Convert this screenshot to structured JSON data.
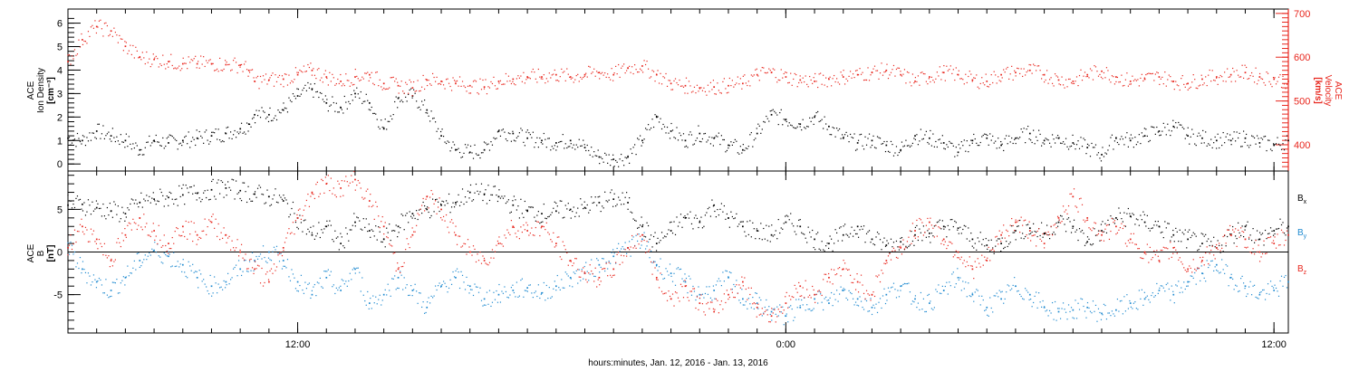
{
  "colors": {
    "black": "#000000",
    "red": "#e8261d",
    "blue": "#1f8ad0"
  },
  "chart_data": [
    {
      "type": "scatter",
      "panel": "plasma",
      "y_title": [
        "ACE",
        "Ion Density",
        "[cm⁻³]"
      ],
      "y2_title": [
        "ACE",
        "Velocity",
        "[km/s]"
      ],
      "ylim": [
        -0.3,
        6.6
      ],
      "y_ticks": [
        0,
        1,
        2,
        3,
        4,
        5,
        6
      ],
      "y2lim": [
        340,
        710
      ],
      "y2_ticks": [
        400,
        500,
        600,
        700
      ],
      "series": [
        {
          "name": "",
          "axis": "left",
          "color": "#000000",
          "x": [
            0.0,
            0.5,
            1.0,
            1.5,
            2.0,
            2.5,
            3.0,
            3.5,
            4.0,
            4.5,
            5.0,
            5.5,
            6.0,
            6.3,
            6.5,
            7.0,
            7.5,
            8.0,
            8.5,
            9.0,
            9.5,
            10.0,
            10.5,
            11.0,
            11.5,
            12.0,
            12.5,
            13.0,
            13.5,
            14.0,
            14.5,
            15.0,
            15.5,
            16.0,
            16.5,
            17.0,
            17.5,
            18.0,
            18.5,
            19.0,
            19.5,
            20.0,
            20.5,
            21.0,
            21.5,
            22.0,
            22.5,
            23.0,
            23.5,
            24.0,
            24.5,
            25.0,
            25.5,
            26.0,
            26.5,
            27.0,
            27.5,
            28.0,
            28.5,
            29.0,
            29.5,
            30.0,
            30.5,
            31.0,
            31.5,
            32.0,
            32.5,
            33.0,
            33.5,
            34.0,
            34.5,
            35.0,
            35.5,
            36.0,
            36.5,
            37.0,
            37.5,
            38.0,
            38.5,
            39.0,
            39.5,
            40.0,
            40.5,
            41.0,
            41.5,
            42.0,
            42.5
          ],
          "y": [
            1.1,
            1.0,
            1.4,
            1.2,
            1.0,
            0.6,
            1.0,
            0.9,
            1.0,
            1.1,
            1.2,
            1.3,
            1.5,
            1.7,
            2.1,
            2.1,
            2.3,
            2.9,
            3.2,
            2.6,
            2.4,
            3.0,
            2.6,
            1.5,
            2.8,
            2.9,
            2.3,
            1.2,
            0.6,
            0.5,
            0.6,
            1.4,
            1.3,
            1.1,
            1.0,
            0.9,
            1.0,
            0.7,
            0.3,
            0.2,
            0.3,
            1.0,
            2.0,
            1.4,
            1.0,
            1.3,
            1.1,
            0.8,
            0.6,
            1.3,
            2.1,
            1.9,
            1.7,
            2.0,
            1.6,
            1.1,
            0.9,
            1.0,
            0.8,
            0.6,
            1.2,
            1.1,
            0.9,
            0.5,
            1.0,
            1.1,
            0.8,
            1.1,
            1.3,
            1.0,
            1.1,
            0.9,
            0.7,
            0.4,
            1.1,
            1.0,
            1.2,
            1.4,
            1.6,
            1.2,
            1.1,
            1.0,
            1.0,
            1.1,
            0.9,
            0.8,
            1.0
          ]
        },
        {
          "name": "",
          "axis": "right",
          "color": "#e8261d",
          "x": [
            0.0,
            0.5,
            1.0,
            1.5,
            2.0,
            2.5,
            3.0,
            3.5,
            4.0,
            4.5,
            5.0,
            5.5,
            6.0,
            6.3,
            6.5,
            7.0,
            7.5,
            8.0,
            8.5,
            9.0,
            9.5,
            10.0,
            10.5,
            11.0,
            11.5,
            12.0,
            12.5,
            13.0,
            13.5,
            14.0,
            14.5,
            15.0,
            15.5,
            16.0,
            16.5,
            17.0,
            17.5,
            18.0,
            18.5,
            19.0,
            19.5,
            20.0,
            20.5,
            21.0,
            21.5,
            22.0,
            22.5,
            23.0,
            23.5,
            24.0,
            24.5,
            25.0,
            25.5,
            26.0,
            26.5,
            27.0,
            27.5,
            28.0,
            28.5,
            29.0,
            29.5,
            30.0,
            30.5,
            31.0,
            31.5,
            32.0,
            32.5,
            33.0,
            33.5,
            34.0,
            34.5,
            35.0,
            35.5,
            36.0,
            36.5,
            37.0,
            37.5,
            38.0,
            38.5,
            39.0,
            39.5,
            40.0,
            40.5,
            41.0,
            41.5,
            42.0,
            42.5
          ],
          "y": [
            590,
            640,
            670,
            660,
            625,
            600,
            595,
            590,
            585,
            585,
            585,
            583,
            582,
            570,
            545,
            548,
            550,
            560,
            570,
            555,
            545,
            555,
            560,
            540,
            535,
            530,
            548,
            545,
            540,
            535,
            532,
            545,
            550,
            555,
            555,
            560,
            555,
            560,
            565,
            560,
            575,
            580,
            560,
            540,
            535,
            530,
            532,
            535,
            540,
            560,
            565,
            555,
            548,
            545,
            550,
            555,
            560,
            565,
            570,
            560,
            545,
            555,
            565,
            560,
            548,
            545,
            560,
            565,
            570,
            560,
            548,
            545,
            560,
            568,
            555,
            545,
            550,
            555,
            545,
            540,
            550,
            555,
            560,
            565,
            555,
            550,
            545
          ]
        }
      ]
    },
    {
      "type": "scatter",
      "panel": "magnetic-field",
      "y_title": [
        "ACE",
        "B",
        "[nT]"
      ],
      "ylim": [
        -9.5,
        9.5
      ],
      "y_ticks": [
        -5,
        0,
        5
      ],
      "x_range": [
        0,
        42.5
      ],
      "x_ticks": [
        {
          "value": 8,
          "label": "12:00"
        },
        {
          "value": 25,
          "label": "0:00"
        },
        {
          "value": 42,
          "label": "12:00"
        }
      ],
      "x_minor_step": 1,
      "xlabel": "hours:minutes, Jan. 12, 2016 - Jan. 13, 2016",
      "legend": {
        "placement": "right",
        "entries": [
          {
            "label": "B",
            "sub": "x",
            "color": "#000000"
          },
          {
            "label": "B",
            "sub": "y",
            "color": "#1f8ad0"
          },
          {
            "label": "B",
            "sub": "z",
            "color": "#e8261d"
          }
        ]
      },
      "series": [
        {
          "name": "Bx",
          "color": "#000000",
          "x": [
            0.0,
            0.5,
            1.0,
            1.5,
            2.0,
            2.5,
            3.0,
            3.5,
            4.0,
            4.5,
            5.0,
            5.5,
            6.0,
            6.5,
            7.0,
            7.5,
            8.0,
            8.5,
            9.0,
            9.5,
            10.0,
            10.5,
            11.0,
            11.5,
            12.0,
            12.5,
            13.0,
            13.5,
            14.0,
            14.5,
            15.0,
            15.5,
            16.0,
            16.5,
            17.0,
            17.5,
            18.0,
            18.5,
            19.0,
            19.5,
            20.0,
            20.5,
            21.0,
            21.5,
            22.0,
            22.5,
            23.0,
            23.5,
            24.0,
            24.5,
            25.0,
            25.5,
            26.0,
            26.5,
            27.0,
            27.5,
            28.0,
            28.5,
            29.0,
            29.5,
            30.0,
            30.5,
            31.0,
            31.5,
            32.0,
            32.5,
            33.0,
            33.5,
            34.0,
            34.5,
            35.0,
            35.5,
            36.0,
            36.5,
            37.0,
            37.5,
            38.0,
            38.5,
            39.0,
            39.5,
            40.0,
            40.5,
            41.0,
            41.5,
            42.0,
            42.5
          ],
          "y": [
            5.5,
            5.6,
            5.2,
            4.8,
            4.5,
            5.8,
            6.2,
            6.4,
            6.7,
            6.9,
            7.3,
            7.5,
            7.2,
            6.8,
            6.5,
            6.0,
            4.0,
            2.0,
            3.0,
            1.0,
            3.5,
            2.5,
            1.5,
            3.0,
            4.5,
            5.0,
            5.5,
            5.8,
            7.0,
            6.8,
            6.5,
            5.5,
            4.8,
            4.5,
            4.8,
            5.0,
            5.2,
            5.8,
            6.2,
            5.8,
            3.0,
            1.0,
            2.5,
            4.0,
            3.5,
            5.5,
            4.0,
            3.0,
            2.5,
            2.0,
            3.5,
            3.0,
            1.5,
            1.0,
            2.0,
            3.0,
            1.5,
            0.8,
            1.2,
            2.0,
            2.2,
            3.0,
            2.8,
            1.5,
            0.8,
            1.0,
            2.5,
            2.8,
            2.2,
            3.5,
            3.0,
            1.2,
            2.5,
            4.0,
            4.2,
            3.5,
            3.0,
            2.0,
            1.5,
            1.0,
            0.5,
            2.0,
            3.0,
            1.5,
            2.5,
            3.0
          ]
        },
        {
          "name": "By",
          "color": "#1f8ad0",
          "x": [
            0.0,
            0.5,
            1.0,
            1.5,
            2.0,
            2.5,
            3.0,
            3.5,
            4.0,
            4.5,
            5.0,
            5.5,
            6.0,
            6.5,
            7.0,
            7.5,
            8.0,
            8.5,
            9.0,
            9.5,
            10.0,
            10.5,
            11.0,
            11.5,
            12.0,
            12.5,
            13.0,
            13.5,
            14.0,
            14.5,
            15.0,
            15.5,
            16.0,
            16.5,
            17.0,
            17.5,
            18.0,
            18.5,
            19.0,
            19.5,
            20.0,
            20.5,
            21.0,
            21.5,
            22.0,
            22.5,
            23.0,
            23.5,
            24.0,
            24.5,
            25.0,
            25.5,
            26.0,
            26.5,
            27.0,
            27.5,
            28.0,
            28.5,
            29.0,
            29.5,
            30.0,
            30.5,
            31.0,
            31.5,
            32.0,
            32.5,
            33.0,
            33.5,
            34.0,
            34.5,
            35.0,
            35.5,
            36.0,
            36.5,
            37.0,
            37.5,
            38.0,
            38.5,
            39.0,
            39.5,
            40.0,
            40.5,
            41.0,
            41.5,
            42.0,
            42.5
          ],
          "y": [
            0.5,
            -2.0,
            -3.5,
            -4.5,
            -3.0,
            -1.0,
            0.2,
            -0.5,
            -1.5,
            -3.0,
            -4.0,
            -3.5,
            -2.0,
            -1.0,
            0.0,
            -1.0,
            -3.5,
            -5.0,
            -3.0,
            -4.5,
            -2.0,
            -6.0,
            -5.0,
            -3.0,
            -4.5,
            -6.5,
            -4.0,
            -3.0,
            -4.0,
            -5.5,
            -5.0,
            -4.5,
            -4.2,
            -4.8,
            -4.0,
            -3.0,
            -2.5,
            -1.5,
            -0.5,
            0.5,
            1.5,
            -1.5,
            -2.5,
            -3.5,
            -5.0,
            -4.5,
            -3.0,
            -5.5,
            -6.0,
            -7.0,
            -7.5,
            -6.5,
            -5.5,
            -6.0,
            -4.5,
            -5.5,
            -6.5,
            -5.0,
            -4.0,
            -5.5,
            -6.0,
            -4.5,
            -3.0,
            -5.0,
            -6.5,
            -5.5,
            -4.0,
            -5.0,
            -6.5,
            -7.0,
            -6.8,
            -6.5,
            -7.2,
            -6.8,
            -6.0,
            -5.5,
            -4.5,
            -5.0,
            -3.5,
            -2.5,
            -1.5,
            -3.0,
            -4.0,
            -5.0,
            -4.5,
            -3.5
          ]
        },
        {
          "name": "Bz",
          "color": "#e8261d",
          "x": [
            0.0,
            0.5,
            1.0,
            1.5,
            2.0,
            2.5,
            3.0,
            3.5,
            4.0,
            4.5,
            5.0,
            5.5,
            6.0,
            6.5,
            7.0,
            7.5,
            8.0,
            8.5,
            9.0,
            9.5,
            10.0,
            10.5,
            11.0,
            11.5,
            12.0,
            12.5,
            13.0,
            13.5,
            14.0,
            14.5,
            15.0,
            15.5,
            16.0,
            16.5,
            17.0,
            17.5,
            18.0,
            18.5,
            19.0,
            19.5,
            20.0,
            20.5,
            21.0,
            21.5,
            22.0,
            22.5,
            23.0,
            23.5,
            24.0,
            24.5,
            25.0,
            25.5,
            26.0,
            26.5,
            27.0,
            27.5,
            28.0,
            28.5,
            29.0,
            29.5,
            30.0,
            30.5,
            31.0,
            31.5,
            32.0,
            32.5,
            33.0,
            33.5,
            34.0,
            34.5,
            35.0,
            35.5,
            36.0,
            36.5,
            37.0,
            37.5,
            38.0,
            38.5,
            39.0,
            39.5,
            40.0,
            40.5,
            41.0,
            41.5,
            42.0,
            42.5
          ],
          "y": [
            0.5,
            3.0,
            1.5,
            -1.0,
            2.0,
            4.0,
            2.5,
            1.0,
            3.0,
            2.0,
            3.5,
            2.0,
            0.0,
            -2.0,
            -3.5,
            0.5,
            4.0,
            7.0,
            8.0,
            7.5,
            8.5,
            6.0,
            3.0,
            -2.0,
            2.0,
            6.5,
            5.0,
            2.0,
            0.0,
            -1.0,
            1.0,
            3.0,
            2.5,
            3.0,
            1.0,
            -1.0,
            -2.5,
            -3.0,
            -2.0,
            0.5,
            2.0,
            -3.0,
            -5.5,
            -4.0,
            -6.0,
            -7.0,
            -5.0,
            -3.5,
            -6.5,
            -7.5,
            -6.0,
            -4.0,
            -5.0,
            -3.0,
            -2.0,
            -3.5,
            -5.0,
            -1.0,
            0.5,
            2.5,
            3.5,
            1.5,
            0.0,
            -2.0,
            -1.0,
            2.0,
            3.5,
            2.5,
            1.0,
            4.0,
            6.5,
            4.0,
            2.0,
            3.0,
            1.5,
            0.0,
            -1.0,
            0.5,
            -2.0,
            -1.0,
            0.5,
            2.0,
            1.5,
            0.0,
            1.0,
            2.0
          ]
        }
      ]
    }
  ]
}
